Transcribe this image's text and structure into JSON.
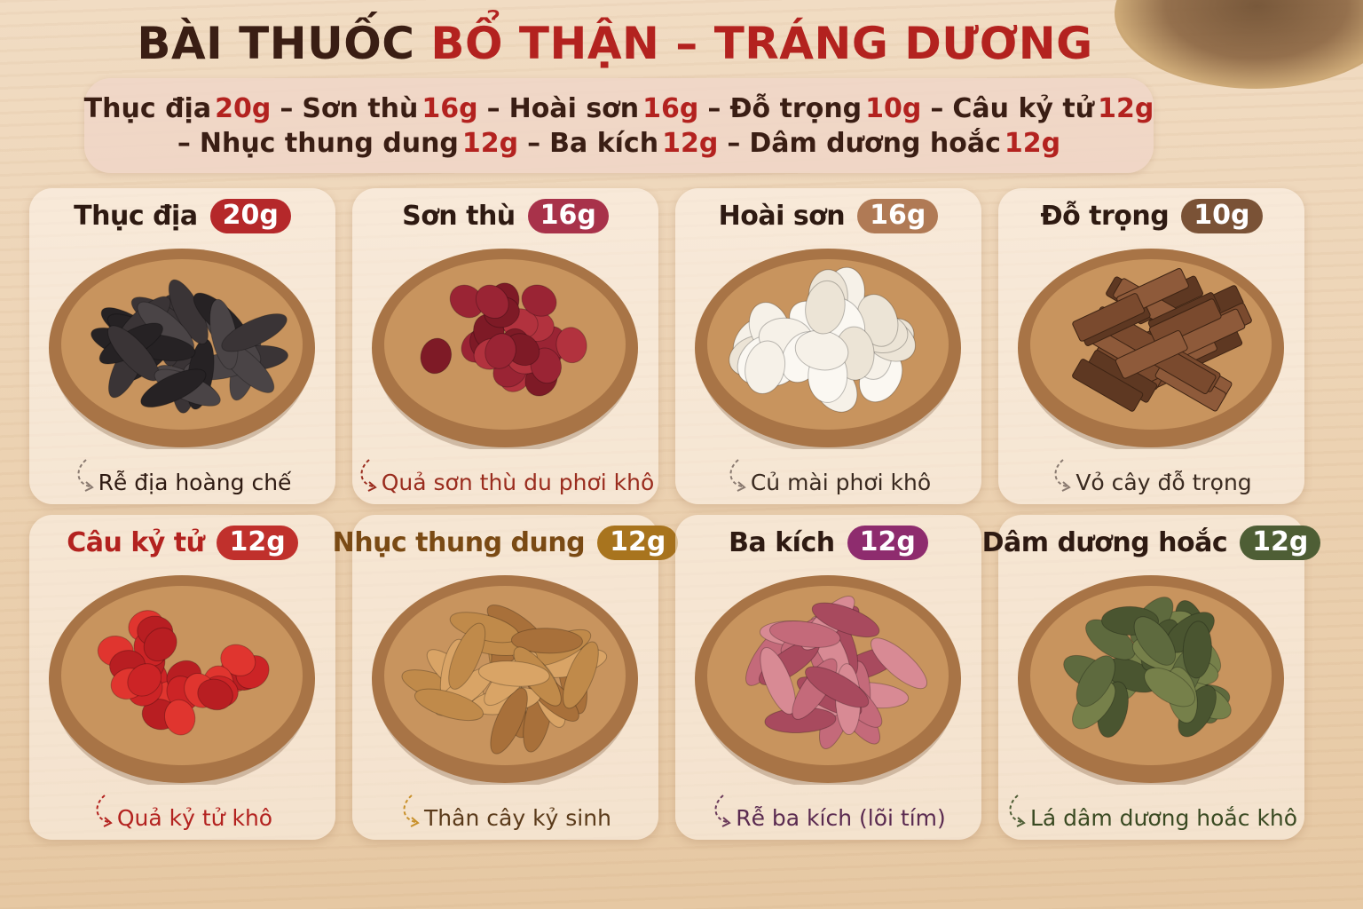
{
  "title": {
    "dark": "BÀI THUỐC",
    "red": "BỔ THẬN – TRÁNG DƯƠNG"
  },
  "formula": {
    "separator": "–",
    "lines": [
      [
        {
          "name": "Thục địa",
          "dose": "20g"
        },
        {
          "name": "Sơn thù",
          "dose": "16g"
        },
        {
          "name": "Hoài sơn",
          "dose": "16g"
        },
        {
          "name": "Đỗ trọng",
          "dose": "10g"
        },
        {
          "name": "Câu kỷ tử",
          "dose": "12g"
        }
      ],
      [
        {
          "name": "Nhục thung dung",
          "dose": "12g"
        },
        {
          "name": "Ba kích",
          "dose": "12g"
        },
        {
          "name": "Dâm dương hoắc",
          "dose": "12g"
        }
      ]
    ]
  },
  "cards": [
    {
      "name": "Thục địa",
      "dose": "20g",
      "caption": "Rễ địa hoàng chế"
    },
    {
      "name": "Sơn thù",
      "dose": "16g",
      "caption": "Quả sơn thù du phơi khô"
    },
    {
      "name": "Hoài sơn",
      "dose": "16g",
      "caption": "Củ mài phơi khô"
    },
    {
      "name": "Đỗ trọng",
      "dose": "10g",
      "caption": "Vỏ cây đỗ trọng"
    },
    {
      "name": "Câu kỷ tử",
      "dose": "12g",
      "caption": "Quả kỷ tử khô"
    },
    {
      "name": "Nhục thung dung",
      "dose": "12g",
      "caption": "Thân cây kỷ sinh"
    },
    {
      "name": "Ba kích",
      "dose": "12g",
      "caption": "Rễ ba kích (lõi tím)"
    },
    {
      "name": "Dâm dương hoắc",
      "dose": "12g",
      "caption": "Lá dâm dương hoắc khô"
    }
  ]
}
